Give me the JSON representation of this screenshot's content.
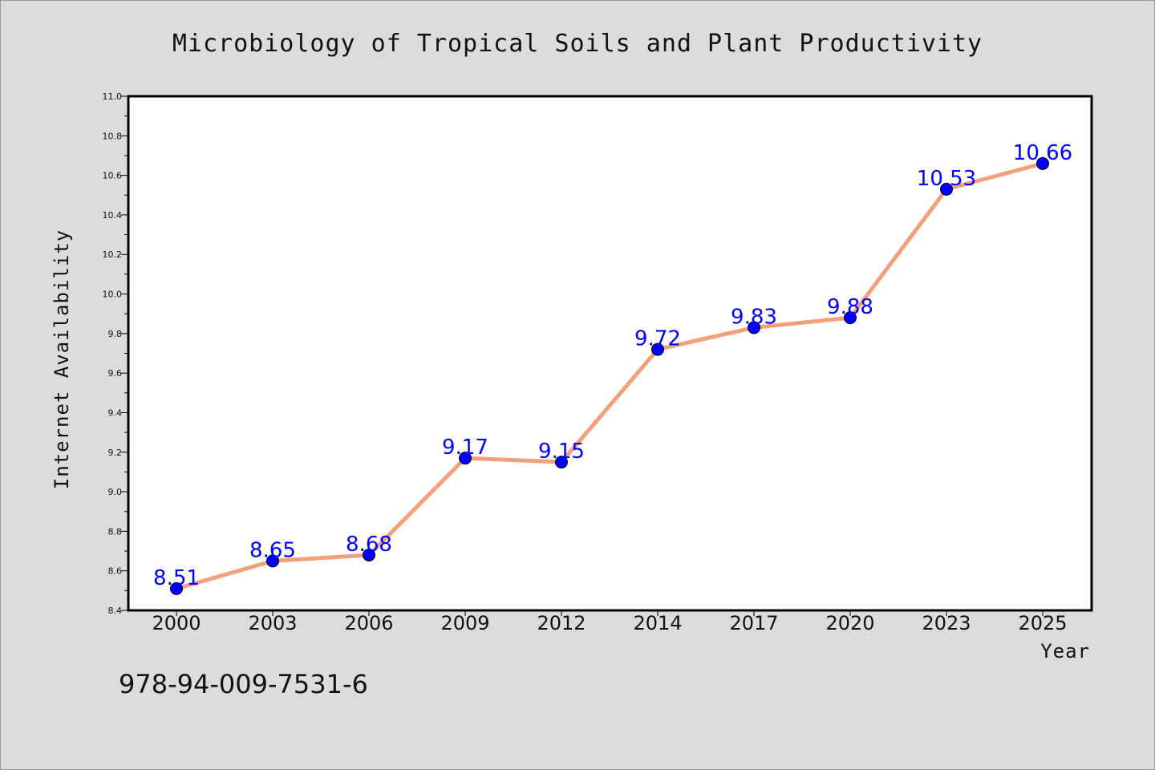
{
  "chart_data": {
    "type": "line",
    "title": "Microbiology of Tropical Soils and Plant Productivity",
    "xlabel": "Year",
    "ylabel": "Internet Availability",
    "categories": [
      "2000",
      "2003",
      "2006",
      "2009",
      "2012",
      "2014",
      "2017",
      "2020",
      "2023",
      "2025"
    ],
    "series": [
      {
        "values": [
          8.51,
          8.65,
          8.68,
          9.17,
          9.15,
          9.72,
          9.83,
          9.88,
          10.53,
          10.66
        ],
        "labels": [
          "8.51",
          "8.65",
          "8.68",
          "9.17",
          "9.15",
          "9.72",
          "9.83",
          "9.88",
          "10.53",
          "10.66"
        ],
        "line_color": "#f4a07a",
        "marker_color": "#0000ff"
      }
    ],
    "ylim": [
      8.4,
      11.0
    ],
    "yticks": [
      "8.4",
      "8.6",
      "8.8",
      "9.0",
      "9.2",
      "9.4",
      "9.6",
      "9.8",
      "10.0",
      "10.2",
      "10.4",
      "10.6",
      "10.8",
      "11.0"
    ],
    "grid": false,
    "legend": "none"
  },
  "footer": {
    "code": "978-94-009-7531-6"
  }
}
